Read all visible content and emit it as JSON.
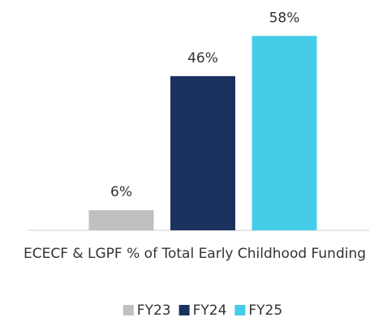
{
  "chart_data": {
    "type": "bar",
    "categories": [
      "ECECF & LGPF % of Total Early Childhood Funding"
    ],
    "series": [
      {
        "name": "FY23",
        "color": "#c0c0c0",
        "values": [
          6
        ],
        "value_labels": [
          "6%"
        ]
      },
      {
        "name": "FY24",
        "color": "#1b325e",
        "values": [
          46
        ],
        "value_labels": [
          "46%"
        ]
      },
      {
        "name": "FY25",
        "color": "#45cde8",
        "values": [
          58
        ],
        "value_labels": [
          "58%"
        ]
      }
    ],
    "ylim": [
      0,
      60
    ],
    "grid": false,
    "legend": "bottom"
  }
}
